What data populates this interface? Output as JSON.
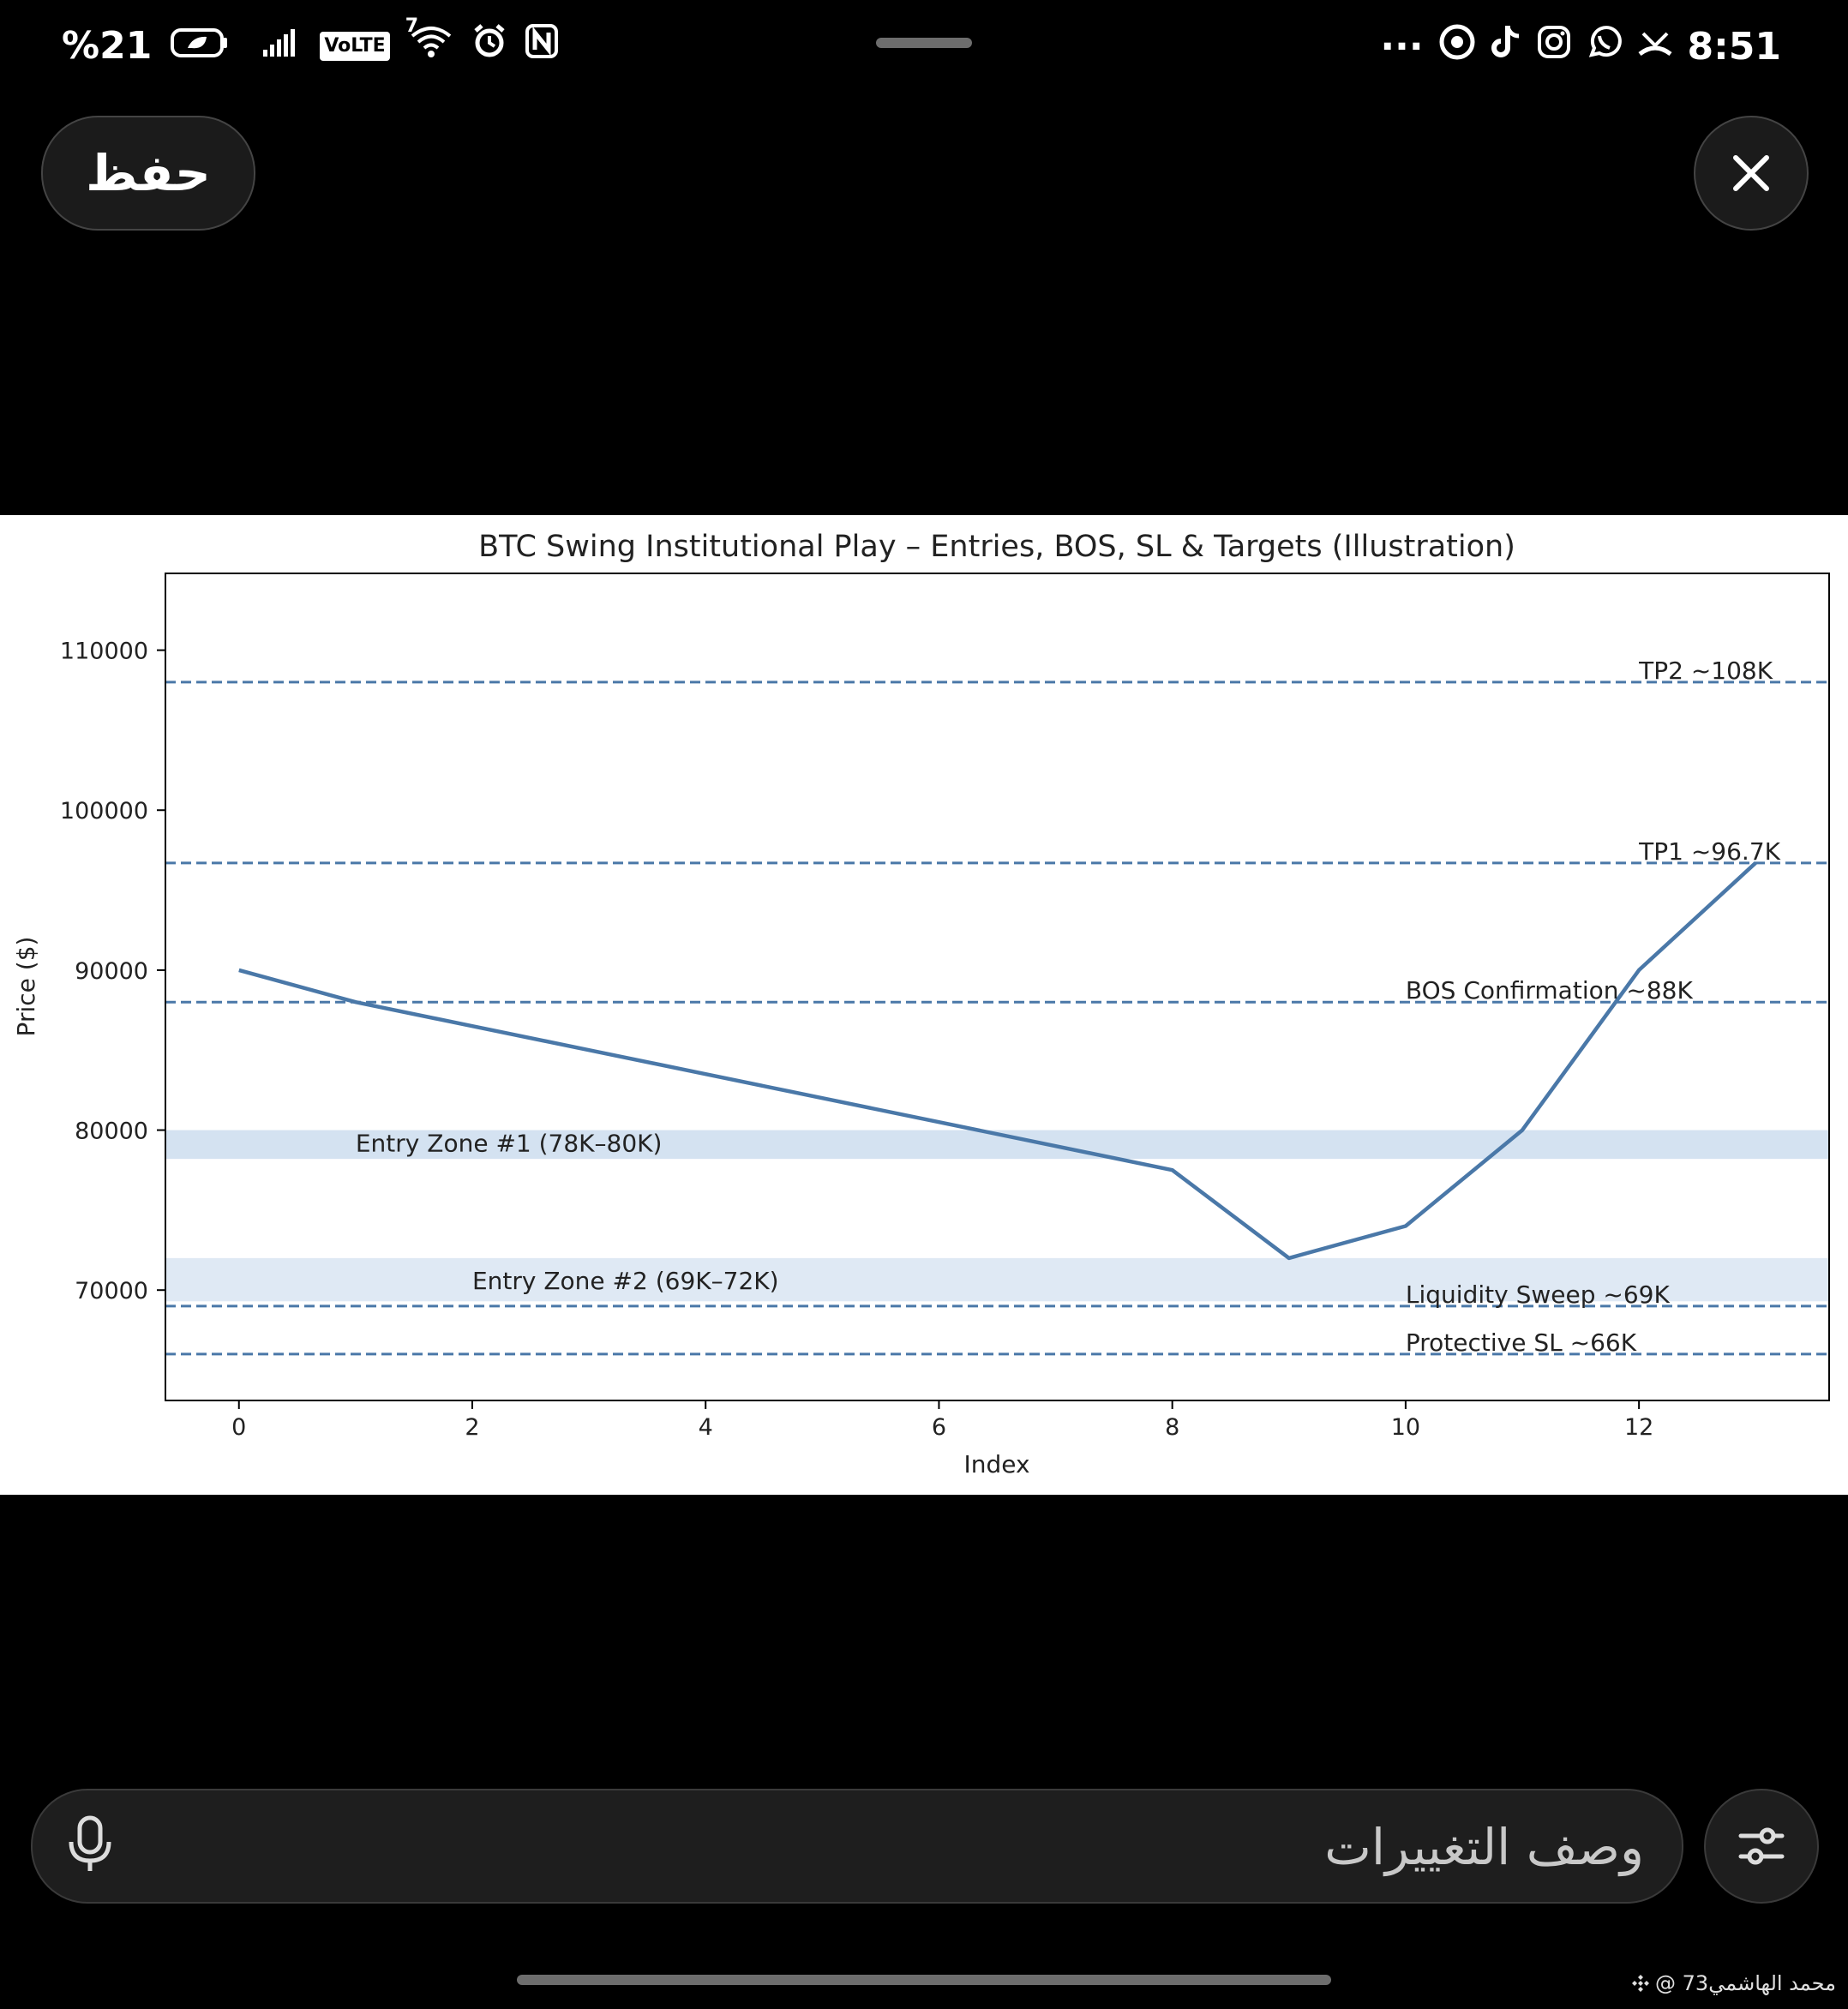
{
  "status_bar": {
    "battery": "%21",
    "network": "VoLTE",
    "signal_sup": "7",
    "more": "···",
    "time": "8:51"
  },
  "top_bar": {
    "save_label": "حفظ"
  },
  "chart_data": {
    "type": "line",
    "title": "BTC Swing Institutional Play – Entries, BOS, SL & Targets (Illustration)",
    "xlabel": "Index",
    "ylabel": "Price ($)",
    "xlim": [
      -0.63,
      13.63
    ],
    "ylim": [
      63100,
      114800
    ],
    "xticks": [
      0,
      2,
      4,
      6,
      8,
      10,
      12
    ],
    "yticks": [
      70000,
      80000,
      90000,
      100000,
      110000
    ],
    "grid": false,
    "line_color": "#4a78a8",
    "x": [
      0,
      1,
      2,
      3,
      4,
      5,
      6,
      7,
      8,
      9,
      10,
      11,
      12,
      13
    ],
    "y": [
      90000,
      88000,
      86500,
      85000,
      83500,
      82000,
      80500,
      79000,
      77500,
      72000,
      74000,
      80000,
      90000,
      96700
    ],
    "bands": [
      {
        "label": "Entry Zone #1 (78K–80K)",
        "from": 78200,
        "to": 80000,
        "label_x": 1,
        "label_y": 79200,
        "color": "#d4e2f1"
      },
      {
        "label": "Entry Zone #2 (69K–72K)",
        "from": 69300,
        "to": 72000,
        "label_x": 2,
        "label_y": 70600,
        "color": "#dfe9f4"
      }
    ],
    "hlines": [
      {
        "label": "TP2 ~108K",
        "y": 108000,
        "label_x": 12
      },
      {
        "label": "TP1 ~96.7K",
        "y": 96700,
        "label_x": 12
      },
      {
        "label": "BOS Confirmation ~88K",
        "y": 88000,
        "label_x": 10
      },
      {
        "label": "Liquidity Sweep ~69K",
        "y": 69000,
        "label_x": 10
      },
      {
        "label": "Protective SL ~66K",
        "y": 66000,
        "label_x": 10
      }
    ]
  },
  "prompt": {
    "placeholder": "وصف التغييرات"
  },
  "watermark": {
    "text": "@ محمد الهاشمي73"
  }
}
